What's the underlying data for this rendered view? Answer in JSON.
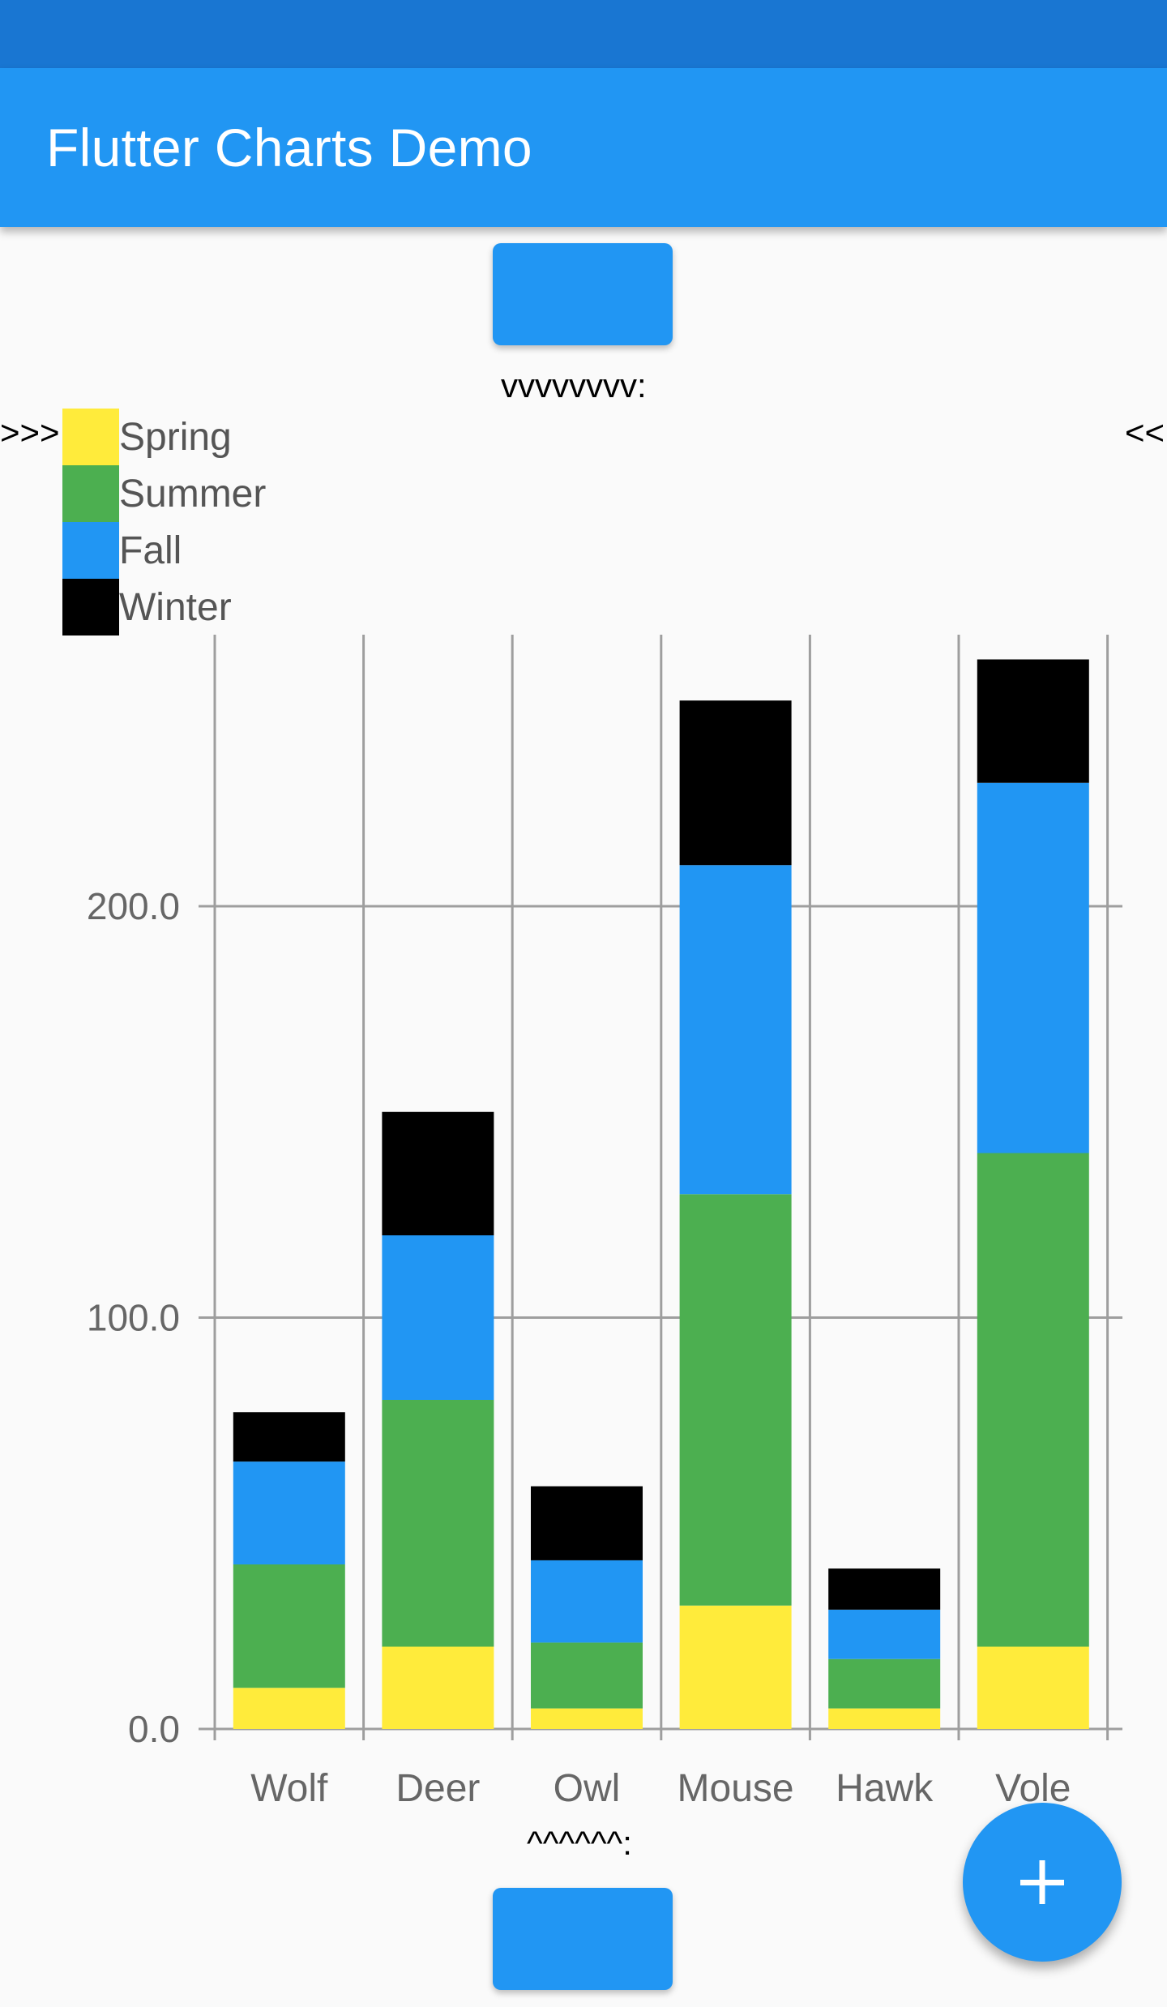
{
  "app_bar": {
    "title": "Flutter Charts Demo"
  },
  "markers": {
    "top": "vvvvvvvv:",
    "left": ">>>",
    "right": "<<",
    "bottom": "^^^^^^:"
  },
  "colors": {
    "status_bar": "#1976d2",
    "app_bar": "#2196f3",
    "button": "#2196f3",
    "fab": "#2196f3",
    "grid": "#9e9e9e"
  },
  "fab": {
    "icon": "plus-icon"
  },
  "chart_data": {
    "type": "bar",
    "stacked": true,
    "categories": [
      "Wolf",
      "Deer",
      "Owl",
      "Mouse",
      "Hawk",
      "Vole"
    ],
    "series": [
      {
        "name": "Spring",
        "color": "#ffeb3b",
        "values": [
          10,
          20,
          5,
          30,
          5,
          20
        ]
      },
      {
        "name": "Summer",
        "color": "#4caf50",
        "values": [
          30,
          60,
          16,
          100,
          12,
          120
        ]
      },
      {
        "name": "Fall",
        "color": "#2196f3",
        "values": [
          25,
          40,
          20,
          80,
          12,
          90
        ]
      },
      {
        "name": "Winter",
        "color": "#000000",
        "values": [
          12,
          30,
          18,
          40,
          10,
          30
        ]
      }
    ],
    "yticks": [
      "0.0",
      "100.0",
      "200.0"
    ],
    "ylim": [
      0,
      266
    ],
    "grid": true,
    "legend_position": "top-left"
  }
}
